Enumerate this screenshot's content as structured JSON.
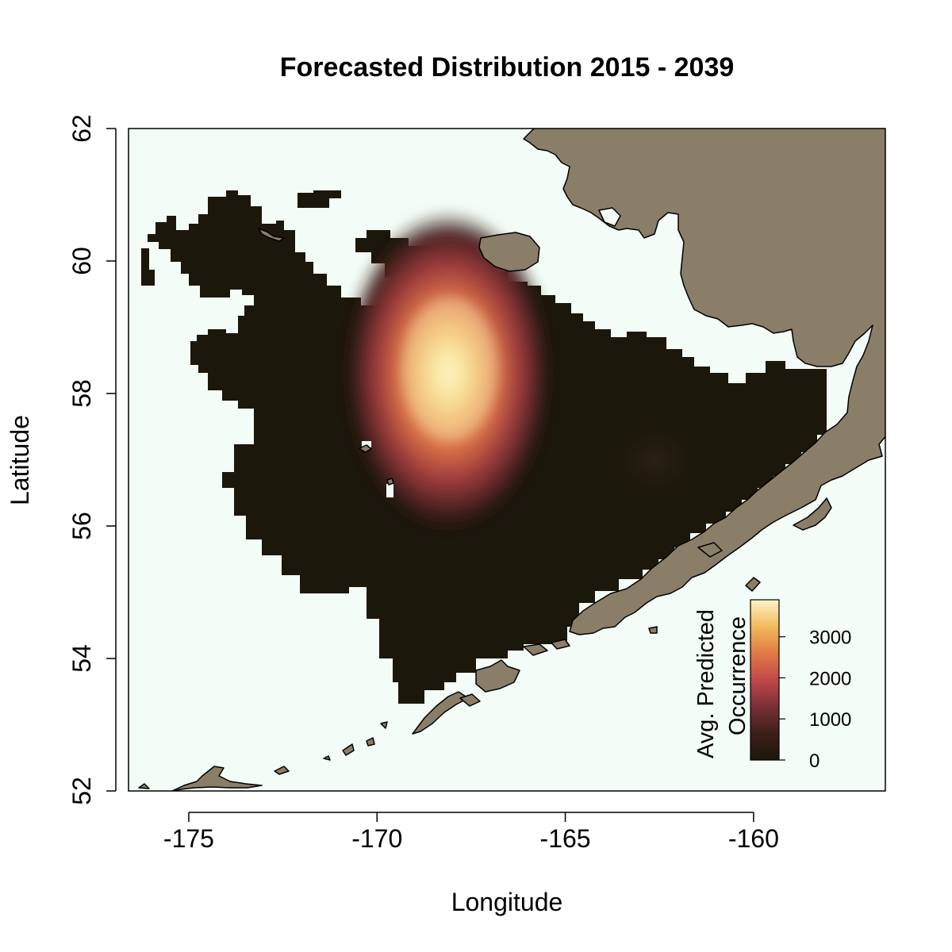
{
  "chart_data": {
    "type": "heatmap",
    "title": "Forecasted Distribution 2015 - 2039",
    "xlabel": "Longitude",
    "ylabel": "Latitude",
    "xlim": [
      -176.6,
      -156.5
    ],
    "ylim": [
      52,
      62
    ],
    "x_ticks": [
      -175,
      -170,
      -165,
      -160
    ],
    "y_ticks": [
      52,
      54,
      56,
      58,
      60,
      62
    ],
    "x_tick_labels": [
      "-175",
      "-170",
      "-165",
      "-160"
    ],
    "y_tick_labels": [
      "52",
      "54",
      "56",
      "58",
      "60",
      "62"
    ],
    "grid": false,
    "legend": {
      "title_line1": "Avg. Predicted",
      "title_line2": "Occurrence",
      "placement": "bottom-right",
      "range": [
        0,
        3900
      ],
      "ticks": [
        0,
        1000,
        2000,
        3000
      ],
      "tick_labels": [
        "0",
        "1000",
        "2000",
        "3000"
      ],
      "colors": [
        "#1c170b",
        "#3d1f1a",
        "#7a3036",
        "#c0484a",
        "#e07a45",
        "#f2ba5c",
        "#fdf3c8"
      ]
    },
    "hotspots": [
      {
        "lon": -168.1,
        "lat": 58.3,
        "value": 3900
      },
      {
        "lon": -162.7,
        "lat": 57.0,
        "value": 300
      }
    ],
    "colors": {
      "ocean": "#f3fcf6",
      "land": "#8a7e69",
      "low_density": "#1c170b"
    }
  }
}
